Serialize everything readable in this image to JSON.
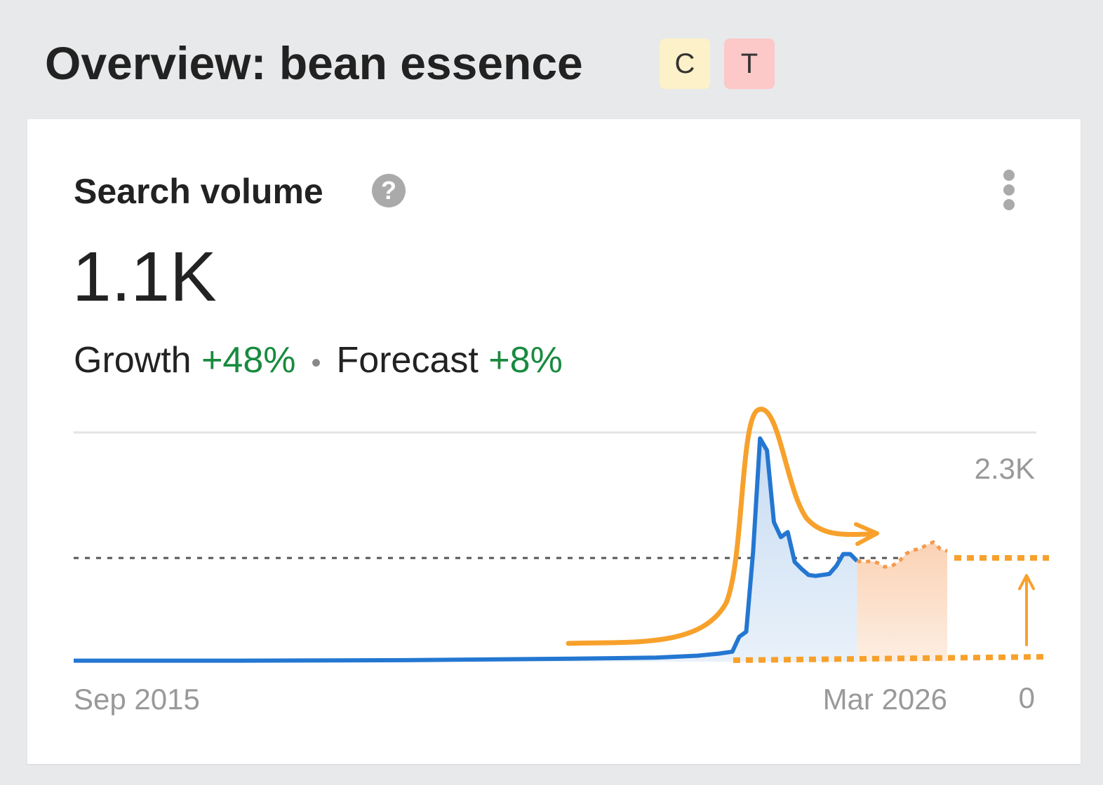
{
  "header": {
    "title": "Overview: bean essence",
    "badges": [
      "C",
      "T"
    ]
  },
  "card": {
    "title": "Search volume",
    "value": "1.1K",
    "growth_label": "Growth",
    "growth_value": "+48%",
    "forecast_label": "Forecast",
    "forecast_value": "+8%"
  },
  "chart_data": {
    "type": "line",
    "x": [
      "2015-09",
      "2017-09",
      "2019-09",
      "2021-09",
      "2022-09",
      "2023-03",
      "2023-06",
      "2023-08",
      "2023-09",
      "2023-10",
      "2023-11",
      "2023-12",
      "2024-01",
      "2024-02",
      "2024-03",
      "2024-04",
      "2024-05",
      "2024-06",
      "2024-07",
      "2024-08",
      "2024-09",
      "2024-10",
      "2024-11",
      "2024-12",
      "2025-01",
      "2025-02",
      "2025-03",
      "2025-04",
      "2025-05",
      "2025-06",
      "2025-07",
      "2025-08",
      "2025-09",
      "2025-10",
      "2025-11",
      "2025-12",
      "2026-01",
      "2026-02",
      "2026-03"
    ],
    "series": [
      {
        "color": "#2477d1",
        "values": [
          10,
          10,
          15,
          30,
          40,
          60,
          80,
          100,
          250,
          300,
          1100,
          2240,
          2120,
          1400,
          1250,
          1300,
          1000,
          930,
          870,
          860,
          870,
          880,
          960,
          1080,
          1080,
          1010,
          null,
          null,
          null,
          null,
          null,
          null,
          null,
          null,
          null,
          null,
          null,
          null,
          null
        ]
      },
      {
        "color": "#f29a4e",
        "dashed": true,
        "values": [
          null,
          null,
          null,
          null,
          null,
          null,
          null,
          null,
          null,
          null,
          null,
          null,
          null,
          null,
          null,
          null,
          null,
          null,
          null,
          null,
          null,
          null,
          null,
          null,
          null,
          1010,
          1000,
          1010,
          990,
          950,
          960,
          1000,
          1080,
          1120,
          1130,
          1170,
          1200,
          1130,
          1110
        ]
      }
    ],
    "reference_value": 1040,
    "xlim": [
      "2015-09",
      "2026-03"
    ],
    "xticks": [
      {
        "value": "2015-09",
        "label": "Sep 2015"
      },
      {
        "value": "2026-03",
        "label": "Mar 2026"
      }
    ],
    "ylim": [
      0,
      2300
    ],
    "yticks": [
      0,
      {
        "value": 2300,
        "label": "2.3K"
      }
    ],
    "grid": true
  }
}
